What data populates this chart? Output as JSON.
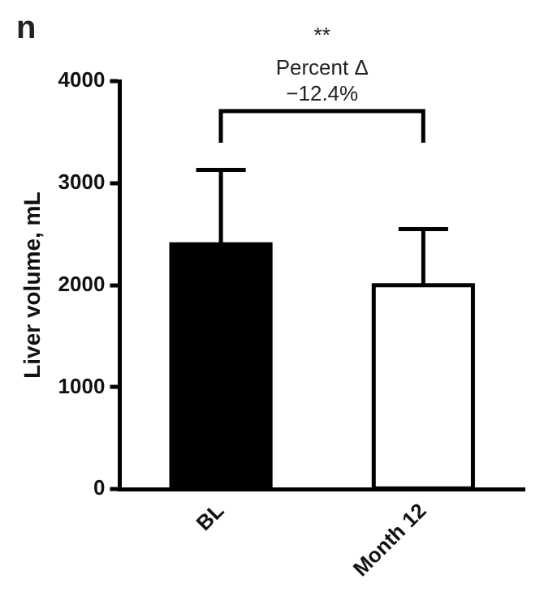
{
  "chart_data": {
    "type": "bar",
    "ylabel": "Liver volume, mL",
    "categories": [
      "BL",
      "Month 12"
    ],
    "values": [
      2400,
      2000
    ],
    "colors": [
      "#000000",
      "#ffffff"
    ],
    "errors": [
      [
        2400,
        3130
      ],
      [
        2000,
        2550
      ]
    ],
    "ylim": [
      0,
      4000
    ],
    "yticks": [
      0,
      1000,
      2000,
      3000,
      4000
    ],
    "grid": false,
    "legend": false,
    "annotations": [
      "n",
      "**",
      "Percent Δ",
      "−12.4%"
    ]
  }
}
